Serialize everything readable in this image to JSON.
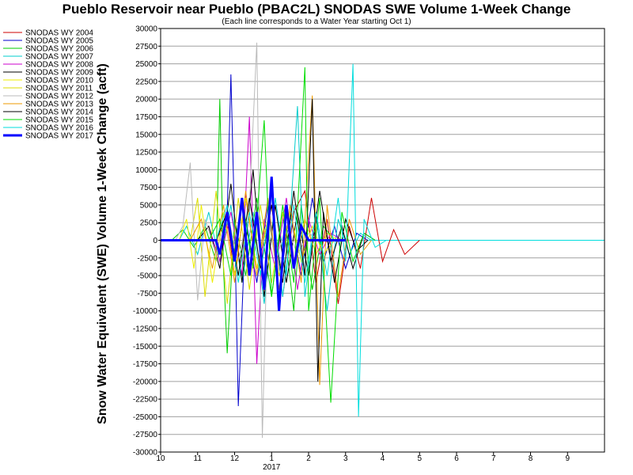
{
  "chart_data": {
    "type": "line",
    "title": "Pueblo Reservoir near Pueblo (PBAC2L) SNODAS SWE Volume 1-Week Change",
    "subtitle": "(Each line corresponds to a Water Year starting Oct 1)",
    "ylabel": "Snow Water Equivalent (SWE) Volume 1-Week Change (acft)",
    "xlabel": "",
    "x_ticks": [
      "10",
      "11",
      "12",
      "1",
      "2",
      "3",
      "4",
      "5",
      "6",
      "7",
      "8",
      "9"
    ],
    "x_year_label": "2017",
    "y_ticks": [
      30000,
      27500,
      25000,
      22500,
      20000,
      17500,
      15000,
      12500,
      10000,
      7500,
      5000,
      2500,
      0,
      -2500,
      -5000,
      -7500,
      -10000,
      -12500,
      -15000,
      -17500,
      -20000,
      -22500,
      -25000,
      -27500,
      -30000
    ],
    "ylim": [
      -30000,
      30000
    ],
    "x_range_months": [
      0,
      12
    ],
    "grid": "horizontal",
    "legend_position": "left",
    "series": [
      {
        "name": "SNODAS WY 2004",
        "color": "#cc0000",
        "width": 1,
        "points": [
          [
            1.5,
            0
          ],
          [
            1.8,
            3000
          ],
          [
            2.0,
            -5000
          ],
          [
            2.3,
            6000
          ],
          [
            2.6,
            -4000
          ],
          [
            3.0,
            5000
          ],
          [
            3.3,
            -8000
          ],
          [
            3.6,
            4000
          ],
          [
            3.9,
            7000
          ],
          [
            4.2,
            -6000
          ],
          [
            4.5,
            3000
          ],
          [
            4.8,
            -9000
          ],
          [
            5.1,
            2000
          ],
          [
            5.4,
            -4000
          ],
          [
            5.7,
            6000
          ],
          [
            6.0,
            -3000
          ],
          [
            6.3,
            1500
          ],
          [
            6.6,
            -2000
          ],
          [
            7.0,
            0
          ]
        ]
      },
      {
        "name": "SNODAS WY 2005",
        "color": "#0000cc",
        "width": 1,
        "points": [
          [
            1.5,
            0
          ],
          [
            1.8,
            4000
          ],
          [
            1.9,
            23500
          ],
          [
            2.0,
            2000
          ],
          [
            2.1,
            -23500
          ],
          [
            2.3,
            3000
          ],
          [
            2.6,
            -6000
          ],
          [
            2.9,
            5000
          ],
          [
            3.2,
            -7000
          ],
          [
            3.5,
            4000
          ],
          [
            3.8,
            -5000
          ],
          [
            4.1,
            6000
          ],
          [
            4.4,
            -3000
          ],
          [
            4.7,
            2000
          ],
          [
            5.0,
            -4000
          ],
          [
            5.3,
            1000
          ],
          [
            5.6,
            0
          ]
        ]
      },
      {
        "name": "SNODAS WY 2006",
        "color": "#00cc00",
        "width": 1,
        "points": [
          [
            0.3,
            0
          ],
          [
            0.6,
            1500
          ],
          [
            0.9,
            -1000
          ],
          [
            1.2,
            2000
          ],
          [
            1.5,
            -3000
          ],
          [
            1.6,
            20000
          ],
          [
            1.7,
            -4000
          ],
          [
            1.8,
            -16000
          ],
          [
            2.0,
            3000
          ],
          [
            2.3,
            -5000
          ],
          [
            2.6,
            6000
          ],
          [
            3.0,
            -8000
          ],
          [
            3.3,
            4000
          ],
          [
            3.6,
            -10000
          ],
          [
            3.8,
            5000
          ],
          [
            4.1,
            -7000
          ],
          [
            4.4,
            2000
          ],
          [
            4.7,
            0
          ]
        ]
      },
      {
        "name": "SNODAS WY 2007",
        "color": "#00cccc",
        "width": 1,
        "points": [
          [
            0.5,
            0
          ],
          [
            0.7,
            2000
          ],
          [
            1.0,
            -2000
          ],
          [
            1.3,
            4000
          ],
          [
            1.6,
            -3000
          ],
          [
            1.9,
            5000
          ],
          [
            2.2,
            -6000
          ],
          [
            2.5,
            4000
          ],
          [
            2.8,
            -9000
          ],
          [
            3.1,
            6000
          ],
          [
            3.4,
            -5000
          ],
          [
            3.7,
            19000
          ],
          [
            3.9,
            -8000
          ],
          [
            4.2,
            4000
          ],
          [
            4.5,
            -10000
          ],
          [
            4.8,
            3000
          ],
          [
            5.1,
            -2000
          ],
          [
            5.4,
            1000
          ],
          [
            5.7,
            0
          ]
        ]
      },
      {
        "name": "SNODAS WY 2008",
        "color": "#cc00cc",
        "width": 1,
        "points": [
          [
            1.0,
            0
          ],
          [
            1.3,
            2000
          ],
          [
            1.6,
            -3000
          ],
          [
            1.9,
            4000
          ],
          [
            2.2,
            -5000
          ],
          [
            2.4,
            17500
          ],
          [
            2.6,
            -17500
          ],
          [
            2.8,
            3000
          ],
          [
            3.1,
            -4000
          ],
          [
            3.4,
            6000
          ],
          [
            3.7,
            -7000
          ],
          [
            4.0,
            3000
          ],
          [
            4.3,
            -2000
          ],
          [
            4.6,
            1000
          ],
          [
            4.9,
            0
          ]
        ]
      },
      {
        "name": "SNODAS WY 2009",
        "color": "#000000",
        "width": 1,
        "points": [
          [
            1.0,
            0
          ],
          [
            1.3,
            2000
          ],
          [
            1.6,
            -4000
          ],
          [
            1.9,
            8000
          ],
          [
            2.2,
            -6000
          ],
          [
            2.5,
            10000
          ],
          [
            2.8,
            -8000
          ],
          [
            3.1,
            5000
          ],
          [
            3.4,
            -6000
          ],
          [
            3.7,
            4000
          ],
          [
            4.0,
            -5000
          ],
          [
            4.3,
            7000
          ],
          [
            4.6,
            -3000
          ],
          [
            4.9,
            2000
          ],
          [
            5.2,
            -4000
          ],
          [
            5.5,
            1000
          ],
          [
            5.8,
            0
          ]
        ]
      },
      {
        "name": "SNODAS WY 2010",
        "color": "#eeee00",
        "width": 1,
        "points": [
          [
            0.5,
            0
          ],
          [
            0.7,
            3000
          ],
          [
            0.9,
            -4000
          ],
          [
            1.1,
            5000
          ],
          [
            1.4,
            -6000
          ],
          [
            1.7,
            4000
          ],
          [
            2.0,
            -5000
          ],
          [
            2.3,
            6000
          ],
          [
            2.6,
            -4000
          ],
          [
            2.9,
            3000
          ],
          [
            3.2,
            -5000
          ],
          [
            3.5,
            4000
          ],
          [
            3.8,
            -3000
          ],
          [
            4.1,
            2000
          ],
          [
            4.4,
            -2000
          ],
          [
            4.7,
            0
          ]
        ]
      },
      {
        "name": "SNODAS WY 2011",
        "color": "#dddd00",
        "width": 1,
        "points": [
          [
            0.8,
            0
          ],
          [
            1.0,
            6000
          ],
          [
            1.2,
            -8000
          ],
          [
            1.5,
            7000
          ],
          [
            1.8,
            -9000
          ],
          [
            2.1,
            6000
          ],
          [
            2.4,
            -7000
          ],
          [
            2.7,
            5000
          ],
          [
            3.0,
            -6000
          ],
          [
            3.3,
            4000
          ],
          [
            3.6,
            -4000
          ],
          [
            3.9,
            3000
          ],
          [
            4.2,
            -2000
          ],
          [
            4.5,
            1000
          ],
          [
            4.8,
            0
          ]
        ]
      },
      {
        "name": "SNODAS WY 2012",
        "color": "#bbbbbb",
        "width": 1,
        "points": [
          [
            0.4,
            0
          ],
          [
            0.6,
            2000
          ],
          [
            0.8,
            11000
          ],
          [
            1.0,
            -8500
          ],
          [
            1.2,
            3000
          ],
          [
            1.5,
            -2000
          ],
          [
            1.8,
            4000
          ],
          [
            2.1,
            -3000
          ],
          [
            2.4,
            5000
          ],
          [
            2.6,
            28000
          ],
          [
            2.75,
            -28000
          ],
          [
            2.9,
            4000
          ],
          [
            3.1,
            -3000
          ],
          [
            3.4,
            2000
          ],
          [
            3.7,
            -2000
          ],
          [
            4.0,
            1000
          ],
          [
            4.3,
            0
          ]
        ]
      },
      {
        "name": "SNODAS WY 2013",
        "color": "#ee9900",
        "width": 1,
        "points": [
          [
            0.8,
            0
          ],
          [
            1.1,
            3000
          ],
          [
            1.4,
            -4000
          ],
          [
            1.7,
            5000
          ],
          [
            2.0,
            -6000
          ],
          [
            2.3,
            7000
          ],
          [
            2.6,
            -5000
          ],
          [
            2.9,
            6000
          ],
          [
            3.2,
            -7000
          ],
          [
            3.5,
            5000
          ],
          [
            3.8,
            -6000
          ],
          [
            4.1,
            20500
          ],
          [
            4.3,
            -20500
          ],
          [
            4.5,
            5000
          ],
          [
            4.8,
            -8000
          ],
          [
            5.1,
            3000
          ],
          [
            5.4,
            -2000
          ],
          [
            5.7,
            0
          ]
        ]
      },
      {
        "name": "SNODAS WY 2014",
        "color": "#000000",
        "width": 1,
        "points": [
          [
            1.5,
            0
          ],
          [
            1.8,
            4000
          ],
          [
            2.1,
            -5000
          ],
          [
            2.4,
            6000
          ],
          [
            2.7,
            -4000
          ],
          [
            3.0,
            5000
          ],
          [
            3.3,
            -6000
          ],
          [
            3.6,
            7000
          ],
          [
            3.9,
            -5000
          ],
          [
            4.1,
            20000
          ],
          [
            4.25,
            -20000
          ],
          [
            4.4,
            4000
          ],
          [
            4.7,
            -6000
          ],
          [
            5.0,
            3000
          ],
          [
            5.3,
            -1500
          ],
          [
            5.6,
            0
          ]
        ]
      },
      {
        "name": "SNODAS WY 2015",
        "color": "#00dd00",
        "width": 1,
        "points": [
          [
            1.3,
            0
          ],
          [
            1.6,
            3000
          ],
          [
            1.9,
            -5000
          ],
          [
            2.2,
            6000
          ],
          [
            2.5,
            -4000
          ],
          [
            2.8,
            17000
          ],
          [
            3.0,
            -8000
          ],
          [
            3.3,
            5000
          ],
          [
            3.6,
            -6000
          ],
          [
            3.9,
            24500
          ],
          [
            4.0,
            -10000
          ],
          [
            4.3,
            6000
          ],
          [
            4.6,
            -23000
          ],
          [
            4.9,
            4000
          ],
          [
            5.2,
            -3000
          ],
          [
            5.5,
            1000
          ],
          [
            5.8,
            0
          ]
        ]
      },
      {
        "name": "SNODAS WY 2016",
        "color": "#00dddd",
        "width": 1,
        "points": [
          [
            1.5,
            0
          ],
          [
            1.8,
            5000
          ],
          [
            2.1,
            -6000
          ],
          [
            2.4,
            4000
          ],
          [
            2.7,
            -5000
          ],
          [
            3.0,
            7000
          ],
          [
            3.3,
            -8000
          ],
          [
            3.6,
            5000
          ],
          [
            3.9,
            -6000
          ],
          [
            4.2,
            4000
          ],
          [
            4.5,
            -5000
          ],
          [
            4.8,
            6000
          ],
          [
            5.0,
            -3000
          ],
          [
            5.2,
            25000
          ],
          [
            5.35,
            -25000
          ],
          [
            5.5,
            3000
          ],
          [
            5.8,
            -1000
          ],
          [
            6.1,
            0
          ]
        ]
      },
      {
        "name": "SNODAS WY 2017",
        "color": "#0000ff",
        "width": 3,
        "points": [
          [
            0,
            0
          ],
          [
            1.5,
            0
          ],
          [
            1.6,
            -2000
          ],
          [
            1.8,
            4000
          ],
          [
            2.0,
            -3000
          ],
          [
            2.2,
            6000
          ],
          [
            2.4,
            -5000
          ],
          [
            2.6,
            4000
          ],
          [
            2.8,
            -7000
          ],
          [
            3.0,
            9000
          ],
          [
            3.2,
            -10000
          ],
          [
            3.4,
            5000
          ],
          [
            3.6,
            -4000
          ],
          [
            3.8,
            2000
          ],
          [
            4.0,
            0
          ],
          [
            5.0,
            0
          ]
        ]
      }
    ],
    "tail": {
      "color": "#00dddd",
      "points": [
        [
          5.6,
          0
        ],
        [
          12,
          0
        ]
      ]
    }
  }
}
